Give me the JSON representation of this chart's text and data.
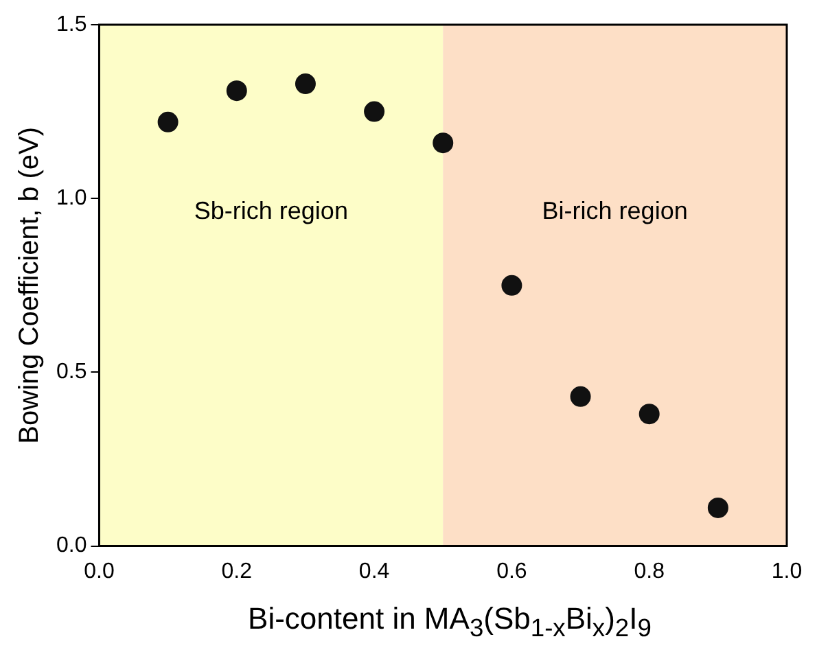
{
  "chart_data": {
    "type": "scatter",
    "xlabel": "Bi-content in MA$_{3}$(Sb$_{1-x}$Bi$_{x}$)$_{2}$I$_{9}$",
    "ylabel": "Bowing Coefficient, b (eV)",
    "x": [
      0.1,
      0.2,
      0.3,
      0.4,
      0.5,
      0.6,
      0.7,
      0.8,
      0.9
    ],
    "series": [
      {
        "color": "#111111",
        "values": [
          1.22,
          1.31,
          1.33,
          1.25,
          1.16,
          0.75,
          0.43,
          0.38,
          0.11
        ]
      }
    ],
    "xlim": [
      0,
      1
    ],
    "xticks": [
      {
        "value": 0,
        "label": "0.0"
      },
      {
        "value": 0.2,
        "label": "0.2"
      },
      {
        "value": 0.4,
        "label": "0.4"
      },
      {
        "value": 0.6,
        "label": "0.6"
      },
      {
        "value": 0.8,
        "label": "0.8"
      },
      {
        "value": 1,
        "label": "1.0"
      }
    ],
    "ylim": [
      0,
      1.5
    ],
    "yticks": [
      {
        "value": 0,
        "label": "0.0"
      },
      {
        "value": 0.5,
        "label": "0.5"
      },
      {
        "value": 1,
        "label": "1.0"
      },
      {
        "value": 1.5,
        "label": "1.5"
      }
    ],
    "bands": [
      {
        "axis": "x",
        "from": 0,
        "to": 0.5,
        "label": "Sb-rich region",
        "color": "#fdfdc8"
      },
      {
        "axis": "x",
        "from": 0.5,
        "to": 1,
        "label": "Bi-rich region",
        "color": "#fddfc6"
      }
    ],
    "marker": "circle",
    "grid": false,
    "legend": false
  }
}
